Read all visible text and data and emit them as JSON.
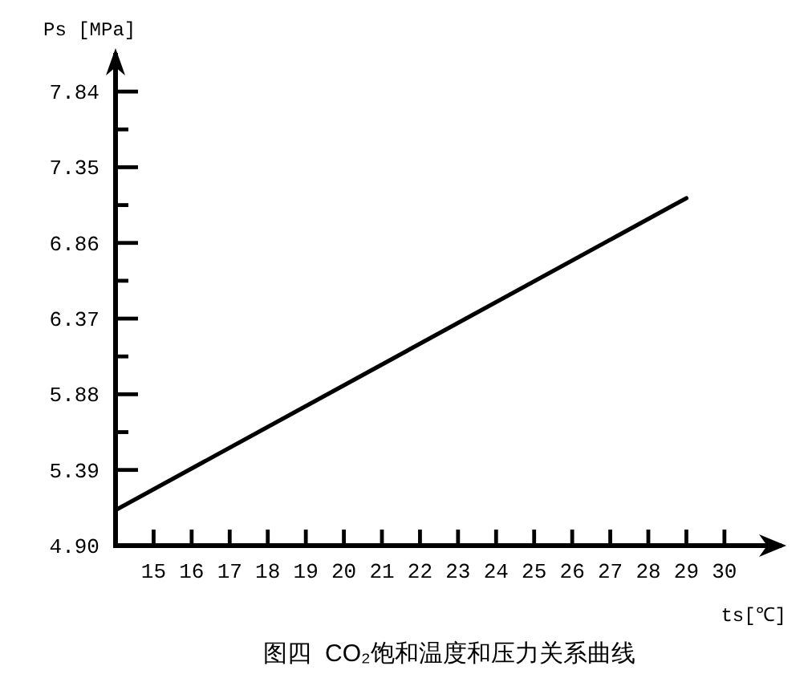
{
  "chart_data": {
    "type": "line",
    "ylabel": "Ps [MPa]",
    "xlabel": "ts[℃]",
    "annotations": [
      "图四  CO₂饱和温度和压力关系曲线"
    ],
    "x": [
      14,
      29
    ],
    "series": [
      {
        "color": "#000000",
        "values": [
          5.13,
          7.15
        ]
      }
    ],
    "line_style": "solid",
    "xlim": [
      14,
      31.5
    ],
    "ylim": [
      4.9,
      8.09
    ],
    "xticks": [
      15,
      16,
      17,
      18,
      19,
      20,
      21,
      22,
      23,
      24,
      25,
      26,
      27,
      28,
      29,
      30
    ],
    "yticks": [
      {
        "value": 4.9,
        "label": "4.90"
      },
      5.39,
      {
        "value": 5.635,
        "label": null
      },
      5.88,
      {
        "value": 6.125,
        "label": null
      },
      6.37,
      {
        "value": 6.615,
        "label": null
      },
      6.86,
      {
        "value": 7.105,
        "label": null
      },
      7.35,
      {
        "value": 7.595,
        "label": null
      },
      7.84
    ]
  }
}
